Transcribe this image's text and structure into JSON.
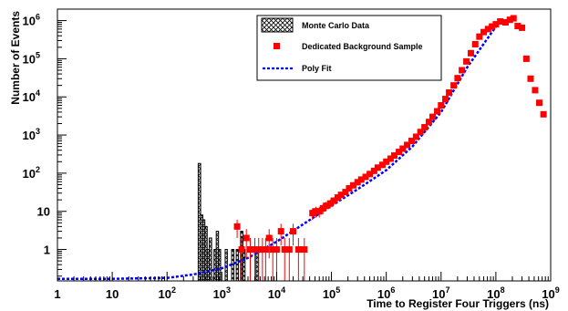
{
  "chart_data": {
    "type": "scatter",
    "xlabel": "Time to Register Four Triggers (ns)",
    "ylabel": "Number of Events",
    "xscale": "log",
    "yscale": "log",
    "xlim": [
      1,
      1000000000
    ],
    "ylim": [
      0.15,
      2000000
    ],
    "grid": false,
    "legend_position": "top-right",
    "x_tick_labels": [
      {
        "x": 1,
        "base": "1",
        "exp": ""
      },
      {
        "x": 10,
        "base": "10",
        "exp": ""
      },
      {
        "x": 100,
        "base": "10",
        "exp": "2"
      },
      {
        "x": 1000,
        "base": "10",
        "exp": "3"
      },
      {
        "x": 10000,
        "base": "10",
        "exp": "4"
      },
      {
        "x": 100000,
        "base": "10",
        "exp": "5"
      },
      {
        "x": 1000000,
        "base": "10",
        "exp": "6"
      },
      {
        "x": 10000000,
        "base": "10",
        "exp": "7"
      },
      {
        "x": 100000000,
        "base": "10",
        "exp": "8"
      },
      {
        "x": 1000000000,
        "base": "10",
        "exp": "9"
      }
    ],
    "y_tick_labels": [
      {
        "y": 1,
        "base": "1",
        "exp": ""
      },
      {
        "y": 10,
        "base": "10",
        "exp": ""
      },
      {
        "y": 100,
        "base": "10",
        "exp": "2"
      },
      {
        "y": 1000,
        "base": "10",
        "exp": "3"
      },
      {
        "y": 10000,
        "base": "10",
        "exp": "4"
      },
      {
        "y": 100000,
        "base": "10",
        "exp": "5"
      },
      {
        "y": 1000000,
        "base": "10",
        "exp": "6"
      }
    ],
    "series": [
      {
        "name": "Monte Carlo Data",
        "kind": "histogram",
        "style": "crosshatch",
        "bins": [
          {
            "x0": 370,
            "x1": 410,
            "y": 180
          },
          {
            "x0": 410,
            "x1": 450,
            "y": 8
          },
          {
            "x0": 450,
            "x1": 490,
            "y": 6
          },
          {
            "x0": 490,
            "x1": 540,
            "y": 4
          },
          {
            "x0": 540,
            "x1": 590,
            "y": 1
          },
          {
            "x0": 590,
            "x1": 650,
            "y": 2
          },
          {
            "x0": 720,
            "x1": 790,
            "y": 1
          },
          {
            "x0": 790,
            "x1": 870,
            "y": 3
          },
          {
            "x0": 870,
            "x1": 950,
            "y": 1
          },
          {
            "x0": 1150,
            "x1": 1260,
            "y": 1
          },
          {
            "x0": 1510,
            "x1": 1660,
            "y": 1
          },
          {
            "x0": 1830,
            "x1": 2000,
            "y": 1
          },
          {
            "x0": 2200,
            "x1": 2420,
            "y": 3
          },
          {
            "x0": 2420,
            "x1": 2650,
            "y": 1
          },
          {
            "x0": 4200,
            "x1": 4600,
            "y": 1
          }
        ]
      },
      {
        "name": "Dedicated Background Sample",
        "kind": "points",
        "color": "#ff0000",
        "points": [
          [
            1900,
            4
          ],
          [
            2300,
            1
          ],
          [
            2800,
            2
          ],
          [
            3300,
            1
          ],
          [
            4000,
            1
          ],
          [
            4700,
            1
          ],
          [
            5500,
            1
          ],
          [
            6300,
            1
          ],
          [
            7300,
            2
          ],
          [
            8500,
            1
          ],
          [
            10000,
            1
          ],
          [
            12000,
            3
          ],
          [
            14000,
            1
          ],
          [
            17000,
            1
          ],
          [
            20000,
            3
          ],
          [
            25000,
            1
          ],
          [
            32000,
            1
          ],
          [
            45000,
            9
          ],
          [
            52000,
            10
          ],
          [
            60000,
            10
          ],
          [
            70000,
            12
          ],
          [
            80000,
            14
          ],
          [
            95000,
            16
          ],
          [
            110000,
            19
          ],
          [
            130000,
            23
          ],
          [
            150000,
            27
          ],
          [
            180000,
            32
          ],
          [
            210000,
            40
          ],
          [
            250000,
            48
          ],
          [
            300000,
            58
          ],
          [
            350000,
            68
          ],
          [
            420000,
            80
          ],
          [
            500000,
            95
          ],
          [
            600000,
            115
          ],
          [
            700000,
            140
          ],
          [
            850000,
            165
          ],
          [
            1000000,
            200
          ],
          [
            1200000,
            240
          ],
          [
            1400000,
            290
          ],
          [
            1700000,
            360
          ],
          [
            2000000,
            440
          ],
          [
            2400000,
            550
          ],
          [
            2900000,
            700
          ],
          [
            3500000,
            900
          ],
          [
            4200000,
            1200
          ],
          [
            5000000,
            1600
          ],
          [
            6000000,
            2200
          ],
          [
            7000000,
            3000
          ],
          [
            8500000,
            4200
          ],
          [
            10000000,
            6000
          ],
          [
            12000000,
            8800
          ],
          [
            14000000,
            13000
          ],
          [
            17000000,
            20000
          ],
          [
            20000000,
            31000
          ],
          [
            24000000,
            50000
          ],
          [
            29000000,
            85000
          ],
          [
            35000000,
            140000
          ],
          [
            42000000,
            240000
          ],
          [
            50000000,
            380000
          ],
          [
            60000000,
            500000
          ],
          [
            72000000,
            600000
          ],
          [
            85000000,
            700000
          ],
          [
            100000000,
            800000
          ],
          [
            120000000,
            950000
          ],
          [
            150000000,
            900000
          ],
          [
            180000000,
            1050000
          ],
          [
            210000000,
            1150000
          ],
          [
            250000000,
            720000
          ],
          [
            300000000,
            650000
          ],
          [
            360000000,
            100000
          ],
          [
            430000000,
            30000
          ],
          [
            520000000,
            15000
          ],
          [
            620000000,
            7000
          ],
          [
            740000000,
            3500
          ]
        ]
      },
      {
        "name": "Poly Fit",
        "kind": "line",
        "style": "dashed",
        "color": "#0000ff",
        "points": [
          [
            1,
            0.17
          ],
          [
            10,
            0.17
          ],
          [
            100,
            0.18
          ],
          [
            300,
            0.22
          ],
          [
            1000,
            0.32
          ],
          [
            3000,
            0.6
          ],
          [
            10000,
            1.6
          ],
          [
            30000,
            4.5
          ],
          [
            100000,
            14
          ],
          [
            300000,
            38
          ],
          [
            1000000,
            120
          ],
          [
            3000000,
            500
          ],
          [
            10000000,
            4000
          ],
          [
            30000000,
            60000
          ],
          [
            100000000,
            700000
          ]
        ]
      }
    ]
  },
  "legend": {
    "items": [
      {
        "label": "Monte Carlo Data",
        "symbol": "crosshatch"
      },
      {
        "label": "Dedicated Background Sample",
        "symbol": "square",
        "color": "#ff0000"
      },
      {
        "label": "Poly Fit",
        "symbol": "dashed-line",
        "color": "#0000ff"
      }
    ]
  }
}
